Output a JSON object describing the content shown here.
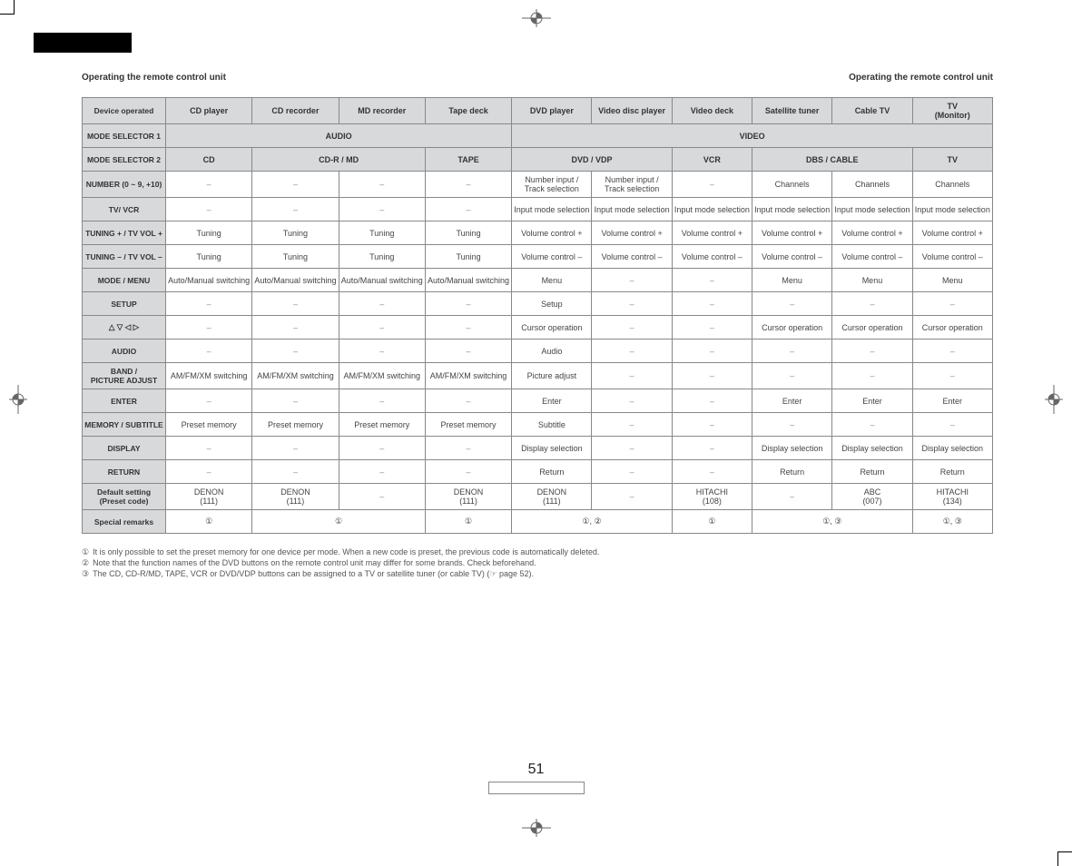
{
  "page_title_left": "Operating the remote control unit",
  "page_title_right": "Operating the remote control unit",
  "page_number": "51",
  "colors": {
    "header_bg": "#d8d9db",
    "border": "#888888",
    "text": "#555555",
    "bg": "#ffffff"
  },
  "device_columns": [
    "CD player",
    "CD recorder",
    "MD recorder",
    "Tape deck",
    "DVD player",
    "Video disc player",
    "Video deck",
    "Satellite tuner",
    "Cable TV",
    "TV\n(Monitor)"
  ],
  "ms1": {
    "label": "MODE SELECTOR 1",
    "audio": "AUDIO",
    "video": "VIDEO"
  },
  "ms2": {
    "label": "MODE SELECTOR 2",
    "cells": [
      "CD",
      "CD-R / MD",
      "TAPE",
      "DVD / VDP",
      "VCR",
      "DBS / CABLE",
      "TV"
    ]
  },
  "rows": {
    "device": "Device operated",
    "number": {
      "label": "NUMBER (0 ~ 9, +10)",
      "cells": [
        "–",
        "–",
        "–",
        "–",
        "Number input /\nTrack selection",
        "Number input /\nTrack selection",
        "–",
        "Channels",
        "Channels",
        "Channels"
      ]
    },
    "tvvcr": {
      "label": "TV/ VCR",
      "cells": [
        "–",
        "–",
        "–",
        "–",
        "Input mode selection",
        "Input mode selection",
        "Input mode selection",
        "Input mode selection",
        "Input mode selection",
        "Input mode selection"
      ]
    },
    "tunp": {
      "label": "TUNING + / TV VOL +",
      "cells": [
        "Tuning",
        "Tuning",
        "Tuning",
        "Tuning",
        "Volume control +",
        "Volume control +",
        "Volume control +",
        "Volume control +",
        "Volume control +",
        "Volume control +"
      ]
    },
    "tunm": {
      "label": "TUNING – / TV VOL –",
      "cells": [
        "Tuning",
        "Tuning",
        "Tuning",
        "Tuning",
        "Volume control –",
        "Volume control –",
        "Volume control –",
        "Volume control –",
        "Volume control –",
        "Volume control –"
      ]
    },
    "mode": {
      "label": "MODE / MENU",
      "cells": [
        "Auto/Manual switching",
        "Auto/Manual switching",
        "Auto/Manual switching",
        "Auto/Manual switching",
        "Menu",
        "–",
        "–",
        "Menu",
        "Menu",
        "Menu"
      ]
    },
    "setup": {
      "label": "SETUP",
      "cells": [
        "–",
        "–",
        "–",
        "–",
        "Setup",
        "–",
        "–",
        "–",
        "–",
        "–"
      ]
    },
    "cursor": {
      "label": "△ ▽ ◁ ▷",
      "cells": [
        "–",
        "–",
        "–",
        "–",
        "Cursor operation",
        "–",
        "–",
        "Cursor operation",
        "Cursor operation",
        "Cursor operation"
      ]
    },
    "audio": {
      "label": "AUDIO",
      "cells": [
        "–",
        "–",
        "–",
        "–",
        "Audio",
        "–",
        "–",
        "–",
        "–",
        "–"
      ]
    },
    "band": {
      "label": "BAND /\nPICTURE ADJUST",
      "cells": [
        "AM/FM/XM switching",
        "AM/FM/XM switching",
        "AM/FM/XM switching",
        "AM/FM/XM switching",
        "Picture adjust",
        "–",
        "–",
        "–",
        "–",
        "–"
      ]
    },
    "enter": {
      "label": "ENTER",
      "cells": [
        "–",
        "–",
        "–",
        "–",
        "Enter",
        "–",
        "–",
        "Enter",
        "Enter",
        "Enter"
      ]
    },
    "memory": {
      "label": "MEMORY / SUBTITLE",
      "cells": [
        "Preset memory",
        "Preset memory",
        "Preset memory",
        "Preset memory",
        "Subtitle",
        "–",
        "–",
        "–",
        "–",
        "–"
      ]
    },
    "display": {
      "label": "DISPLAY",
      "cells": [
        "–",
        "–",
        "–",
        "–",
        "Display selection",
        "–",
        "–",
        "Display selection",
        "Display selection",
        "Display selection"
      ]
    },
    "return": {
      "label": "RETURN",
      "cells": [
        "–",
        "–",
        "–",
        "–",
        "Return",
        "–",
        "–",
        "Return",
        "Return",
        "Return"
      ]
    },
    "default": {
      "label": "Default setting\n(Preset code)",
      "cells": [
        "DENON\n(111)",
        "DENON\n(111)",
        "–",
        "DENON\n(111)",
        "DENON\n(111)",
        "–",
        "HITACHI\n(108)",
        "–",
        "ABC\n(007)",
        "HITACHI\n(134)"
      ]
    },
    "special": {
      "label": "Special remarks",
      "cells": [
        "①",
        "①",
        "①",
        "①, ②",
        "①",
        "①, ③",
        "①, ③"
      ]
    }
  },
  "notes": [
    {
      "num": "①",
      "text": "It is only possible to set the preset memory for one device per mode. When a new code is preset, the previous code is automatically deleted."
    },
    {
      "num": "②",
      "text": "Note that the function names of the DVD buttons on the remote control unit may differ for some brands. Check beforehand."
    },
    {
      "num": "③",
      "text": "The CD, CD-R/MD, TAPE, VCR or DVD/VDP buttons can be assigned to a TV or satellite tuner (or cable TV) (☞ page 52)."
    }
  ]
}
